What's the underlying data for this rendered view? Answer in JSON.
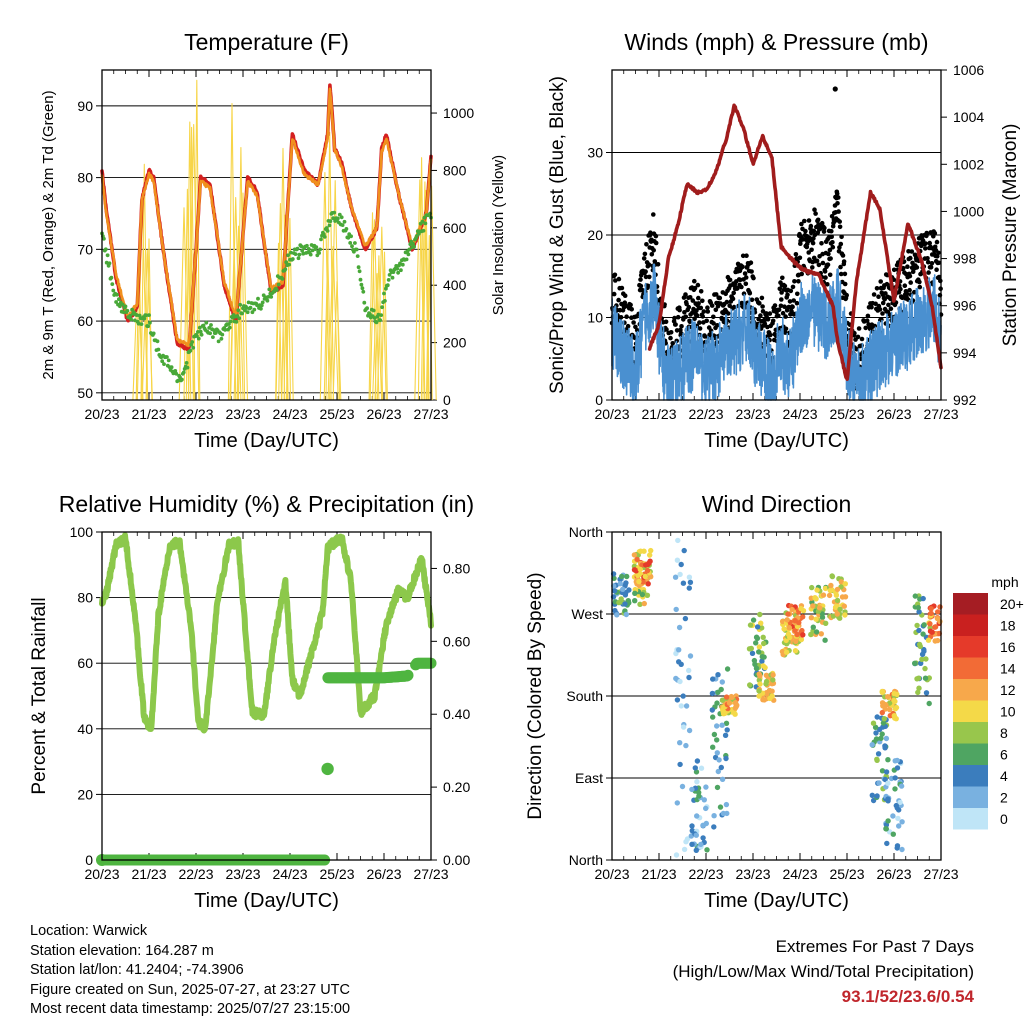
{
  "chart_data": [
    {
      "id": "temperature",
      "type": "line",
      "title": "Temperature (F)",
      "xlabel": "Time (Day/UTC)",
      "ylabel": "2m & 9m T (Red, Orange) & 2m Td (Green)",
      "y2label": "Solar Insolation (Yellow)",
      "x_ticks": [
        "20/23",
        "21/23",
        "22/23",
        "23/23",
        "24/23",
        "25/23",
        "26/23",
        "27/23"
      ],
      "ylim": [
        49,
        95
      ],
      "y_ticks": [
        50,
        60,
        70,
        80,
        90
      ],
      "y2lim": [
        0,
        1150
      ],
      "y2_ticks": [
        0,
        200,
        400,
        600,
        800,
        1000
      ],
      "grid": true,
      "series": [
        {
          "color": "#d42020",
          "x": [
            0,
            0.08,
            0.3,
            0.55,
            0.75,
            0.85,
            1.0,
            1.1,
            1.3,
            1.6,
            1.85,
            2.0,
            2.1,
            2.3,
            2.6,
            2.85,
            3.0,
            3.1,
            3.3,
            3.6,
            3.85,
            4.0,
            4.05,
            4.3,
            4.6,
            4.8,
            4.85,
            4.95,
            5.1,
            5.3,
            5.6,
            5.85,
            5.95,
            6.05,
            6.3,
            6.6,
            6.9,
            7.0
          ],
          "y": [
            81,
            76,
            66,
            60,
            62,
            77,
            81,
            80,
            70,
            57,
            56,
            70,
            80,
            79,
            65,
            60,
            72,
            80,
            78,
            64,
            65,
            81,
            86,
            81,
            79,
            86,
            93,
            84,
            82,
            76,
            70,
            73,
            84,
            86,
            78,
            70,
            75,
            83
          ]
        },
        {
          "color": "#f0901e",
          "x": [
            0,
            0.08,
            0.3,
            0.55,
            0.75,
            0.85,
            1.0,
            1.1,
            1.3,
            1.6,
            1.85,
            2.0,
            2.1,
            2.3,
            2.6,
            2.85,
            3.0,
            3.1,
            3.3,
            3.6,
            3.85,
            4.0,
            4.05,
            4.3,
            4.6,
            4.8,
            4.85,
            4.95,
            5.1,
            5.3,
            5.6,
            5.85,
            5.95,
            6.05,
            6.3,
            6.6,
            6.9,
            7.0
          ],
          "y": [
            80.5,
            75.5,
            66.5,
            60.5,
            62.5,
            77,
            80.5,
            79.5,
            70,
            57.5,
            56.5,
            70,
            79.5,
            78.5,
            65.5,
            60.5,
            72,
            79.5,
            77.5,
            64.5,
            65.5,
            80.5,
            85.5,
            80.5,
            79,
            85.5,
            92.5,
            84,
            81.5,
            76,
            70.5,
            73,
            83.5,
            85.5,
            78,
            70.5,
            75,
            82.5
          ]
        },
        {
          "color": "#48a838",
          "x": [
            0,
            0.1,
            0.3,
            0.6,
            0.8,
            1.0,
            1.2,
            1.5,
            1.7,
            2.0,
            2.2,
            2.5,
            2.8,
            3.0,
            3.2,
            3.5,
            3.8,
            4.0,
            4.3,
            4.6,
            4.9,
            5.1,
            5.4,
            5.6,
            5.9,
            6.1,
            6.4,
            6.7,
            7.0
          ],
          "y": [
            73,
            69,
            63,
            61,
            60,
            60,
            56,
            53,
            52,
            58,
            59,
            58,
            60,
            62,
            62,
            63,
            66,
            69,
            70,
            70,
            75,
            74,
            70,
            62,
            60,
            66,
            68,
            72,
            75
          ]
        }
      ],
      "insolation": {
        "color": "#f7d548",
        "peaks": [
          {
            "center": 0.88,
            "values": [
              780,
              910
            ]
          },
          {
            "center": 1.88,
            "values": [
              1000,
              1140
            ]
          },
          {
            "center": 2.88,
            "values": [
              1070,
              880
            ]
          },
          {
            "center": 3.88,
            "values": [
              900,
              850
            ]
          },
          {
            "center": 4.88,
            "values": [
              980,
              640
            ]
          },
          {
            "center": 5.88,
            "values": [
              720,
              880
            ]
          },
          {
            "center": 6.88,
            "values": [
              850,
              990
            ]
          }
        ]
      }
    },
    {
      "id": "winds",
      "type": "scatter",
      "title": "Winds (mph) & Pressure (mb)",
      "xlabel": "Time (Day/UTC)",
      "ylabel": "Sonic/Prop Wind & Gust (Blue, Black)",
      "y2label": "Station Pressure (Maroon)",
      "x_ticks": [
        "20/23",
        "21/23",
        "22/23",
        "23/23",
        "24/23",
        "25/23",
        "26/23",
        "27/23"
      ],
      "ylim": [
        0,
        40
      ],
      "y_ticks": [
        0,
        10,
        20,
        30
      ],
      "y2lim": [
        992,
        1006
      ],
      "y2_ticks": [
        992,
        994,
        996,
        998,
        1000,
        1002,
        1004,
        1006
      ],
      "grid": true,
      "series": [
        {
          "color": "#4a90d0",
          "kind": "wind",
          "x": [
            0,
            0.3,
            0.5,
            0.7,
            0.9,
            1.0,
            1.2,
            1.5,
            1.8,
            2.0,
            2.3,
            2.6,
            2.9,
            3.1,
            3.4,
            3.6,
            3.8,
            4.0,
            4.3,
            4.6,
            4.8,
            5.0,
            5.2,
            5.5,
            5.8,
            6.0,
            6.3,
            6.6,
            6.9,
            7.0
          ],
          "y": [
            8,
            5,
            3,
            10,
            13,
            7,
            2,
            4,
            6,
            3,
            5,
            7,
            9,
            5,
            3,
            6,
            4,
            10,
            11,
            9,
            12,
            5,
            2,
            4,
            6,
            7,
            8,
            10,
            11,
            6
          ]
        },
        {
          "color": "#000000",
          "kind": "gust",
          "x": [
            0,
            0.3,
            0.5,
            0.7,
            0.9,
            1.0,
            1.2,
            1.5,
            1.8,
            2.0,
            2.3,
            2.6,
            2.9,
            3.1,
            3.4,
            3.6,
            3.8,
            4.0,
            4.3,
            4.6,
            4.8,
            5.0,
            5.2,
            5.5,
            5.8,
            6.0,
            6.3,
            6.6,
            6.9,
            7.0
          ],
          "y": [
            12,
            9,
            6,
            15,
            19,
            11,
            5,
            8,
            11,
            7,
            10,
            12,
            14,
            9,
            7,
            11,
            9,
            17,
            19,
            16,
            22,
            9,
            4,
            8,
            11,
            12,
            14,
            16,
            17,
            10
          ]
        },
        {
          "color": "#a01c1c",
          "kind": "pressure",
          "x": [
            0.8,
            1.0,
            1.2,
            1.4,
            1.6,
            1.8,
            2.0,
            2.2,
            2.45,
            2.6,
            2.8,
            3.0,
            3.2,
            3.4,
            3.6,
            3.9,
            4.1,
            4.4,
            4.7,
            4.8,
            5.0,
            5.2,
            5.5,
            5.7,
            6.0,
            6.3,
            6.6,
            6.8,
            7.0
          ],
          "y": [
            994.2,
            995.2,
            998.0,
            999.4,
            1001.2,
            1000.8,
            1000.9,
            1001.6,
            1003.2,
            1004.5,
            1003.5,
            1002.0,
            1003.2,
            1002.3,
            998.5,
            997.8,
            997.5,
            997.3,
            996.0,
            994.5,
            992.8,
            997.0,
            1000.8,
            1000.1,
            996.2,
            999.5,
            997.8,
            996.1,
            993.4
          ]
        }
      ],
      "outlier": {
        "x": 4.75,
        "y": 37.7
      }
    },
    {
      "id": "humidity",
      "type": "line",
      "title": "Relative Humidity (%) & Precipitation (in)",
      "xlabel": "Time (Day/UTC)",
      "ylabel": "Percent & Total Rainfall",
      "x_ticks": [
        "20/23",
        "21/23",
        "22/23",
        "23/23",
        "24/23",
        "25/23",
        "26/23",
        "27/23"
      ],
      "ylim": [
        0,
        100
      ],
      "y_ticks": [
        0,
        20,
        40,
        60,
        80,
        100
      ],
      "y2lim": [
        0,
        0.9
      ],
      "y2_ticks": [
        "0.00",
        "0.20",
        "0.40",
        "0.60",
        "0.80"
      ],
      "grid": true,
      "series": [
        {
          "color": "#8cc84b",
          "kind": "rh",
          "x": [
            0,
            0.1,
            0.3,
            0.5,
            0.7,
            0.9,
            1.05,
            1.2,
            1.45,
            1.65,
            1.9,
            2.05,
            2.2,
            2.45,
            2.7,
            2.9,
            3.05,
            3.2,
            3.45,
            3.65,
            3.9,
            4.05,
            4.2,
            4.5,
            4.7,
            4.8,
            4.95,
            5.1,
            5.3,
            5.5,
            5.8,
            6.05,
            6.3,
            6.5,
            6.8,
            7.0
          ],
          "y": [
            78,
            82,
            96,
            98,
            75,
            43,
            40,
            75,
            96,
            97,
            70,
            42,
            40,
            78,
            96,
            97,
            70,
            45,
            44,
            66,
            85,
            55,
            50,
            65,
            76,
            95,
            97,
            98,
            85,
            45,
            50,
            72,
            82,
            80,
            92,
            72
          ]
        },
        {
          "color": "#4fb540",
          "kind": "precip",
          "x": [
            0,
            1,
            2,
            3,
            4,
            4.75,
            4.8,
            5.0,
            5.5,
            6.0,
            6.5,
            6.7,
            7.0
          ],
          "y": [
            0.0,
            0.0,
            0.0,
            0.0,
            0.0,
            0.0,
            0.5,
            0.5,
            0.5,
            0.5,
            0.505,
            0.54,
            0.54
          ]
        }
      ],
      "precip_point": {
        "x": 4.8,
        "y": 0.25
      }
    },
    {
      "id": "direction",
      "type": "scatter",
      "title": "Wind Direction",
      "xlabel": "Time (Day/UTC)",
      "ylabel": "Direction (Colored By Speed)",
      "x_ticks": [
        "20/23",
        "21/23",
        "22/23",
        "23/23",
        "24/23",
        "25/23",
        "26/23",
        "27/23"
      ],
      "ylim": [
        0,
        360
      ],
      "y_tick_labels": [
        "North",
        "East",
        "South",
        "West",
        "North"
      ],
      "grid": true,
      "clusters": [
        {
          "x": 0.2,
          "y": 290,
          "spread_y": 25,
          "speed": 5
        },
        {
          "x": 0.65,
          "y": 310,
          "spread_y": 30,
          "speed": 9
        },
        {
          "x": 0.65,
          "y": 315,
          "spread_y": 15,
          "speed": 13
        },
        {
          "x": 1.5,
          "y": 180,
          "spread_y": 180,
          "speed": 2
        },
        {
          "x": 1.85,
          "y": 60,
          "spread_y": 50,
          "speed": 3
        },
        {
          "x": 2.3,
          "y": 120,
          "spread_y": 90,
          "speed": 4
        },
        {
          "x": 2.5,
          "y": 170,
          "spread_y": 10,
          "speed": 11
        },
        {
          "x": 3.1,
          "y": 230,
          "spread_y": 40,
          "speed": 7
        },
        {
          "x": 3.3,
          "y": 190,
          "spread_y": 15,
          "speed": 10
        },
        {
          "x": 3.8,
          "y": 250,
          "spread_y": 25,
          "speed": 10
        },
        {
          "x": 3.9,
          "y": 260,
          "spread_y": 20,
          "speed": 13
        },
        {
          "x": 4.4,
          "y": 270,
          "spread_y": 30,
          "speed": 9
        },
        {
          "x": 4.8,
          "y": 290,
          "spread_y": 25,
          "speed": 10
        },
        {
          "x": 5.7,
          "y": 110,
          "spread_y": 50,
          "speed": 5
        },
        {
          "x": 5.9,
          "y": 170,
          "spread_y": 15,
          "speed": 11
        },
        {
          "x": 6.0,
          "y": 60,
          "spread_y": 50,
          "speed": 3
        },
        {
          "x": 6.6,
          "y": 230,
          "spread_y": 60,
          "speed": 6
        },
        {
          "x": 6.9,
          "y": 260,
          "spread_y": 20,
          "speed": 13
        }
      ],
      "legend": {
        "title": "mph",
        "position": "right",
        "labels": [
          "20+",
          "18",
          "16",
          "14",
          "12",
          "10",
          "8",
          "6",
          "4",
          "2",
          "0"
        ],
        "colors": [
          "#a51d23",
          "#c9201f",
          "#e53a2a",
          "#f26b36",
          "#f7a84b",
          "#f4d948",
          "#98c64c",
          "#4fa562",
          "#3b7dbd",
          "#79b1e0",
          "#bfe5f7"
        ]
      }
    }
  ],
  "footer": {
    "location": "Location: Warwick",
    "elevation": "Station elevation: 164.287 m",
    "latlon": "Station lat/lon: 41.2404; -74.3906",
    "created": "Figure created on Sun, 2025-07-27, at 23:27 UTC",
    "recent": "Most recent data timestamp: 2025/07/27 23:15:00",
    "extremes_title": "Extremes For Past 7 Days",
    "extremes_sub": "(High/Low/Max Wind/Total Precipitation)",
    "extremes_values": "93.1/52/23.6/0.54"
  }
}
